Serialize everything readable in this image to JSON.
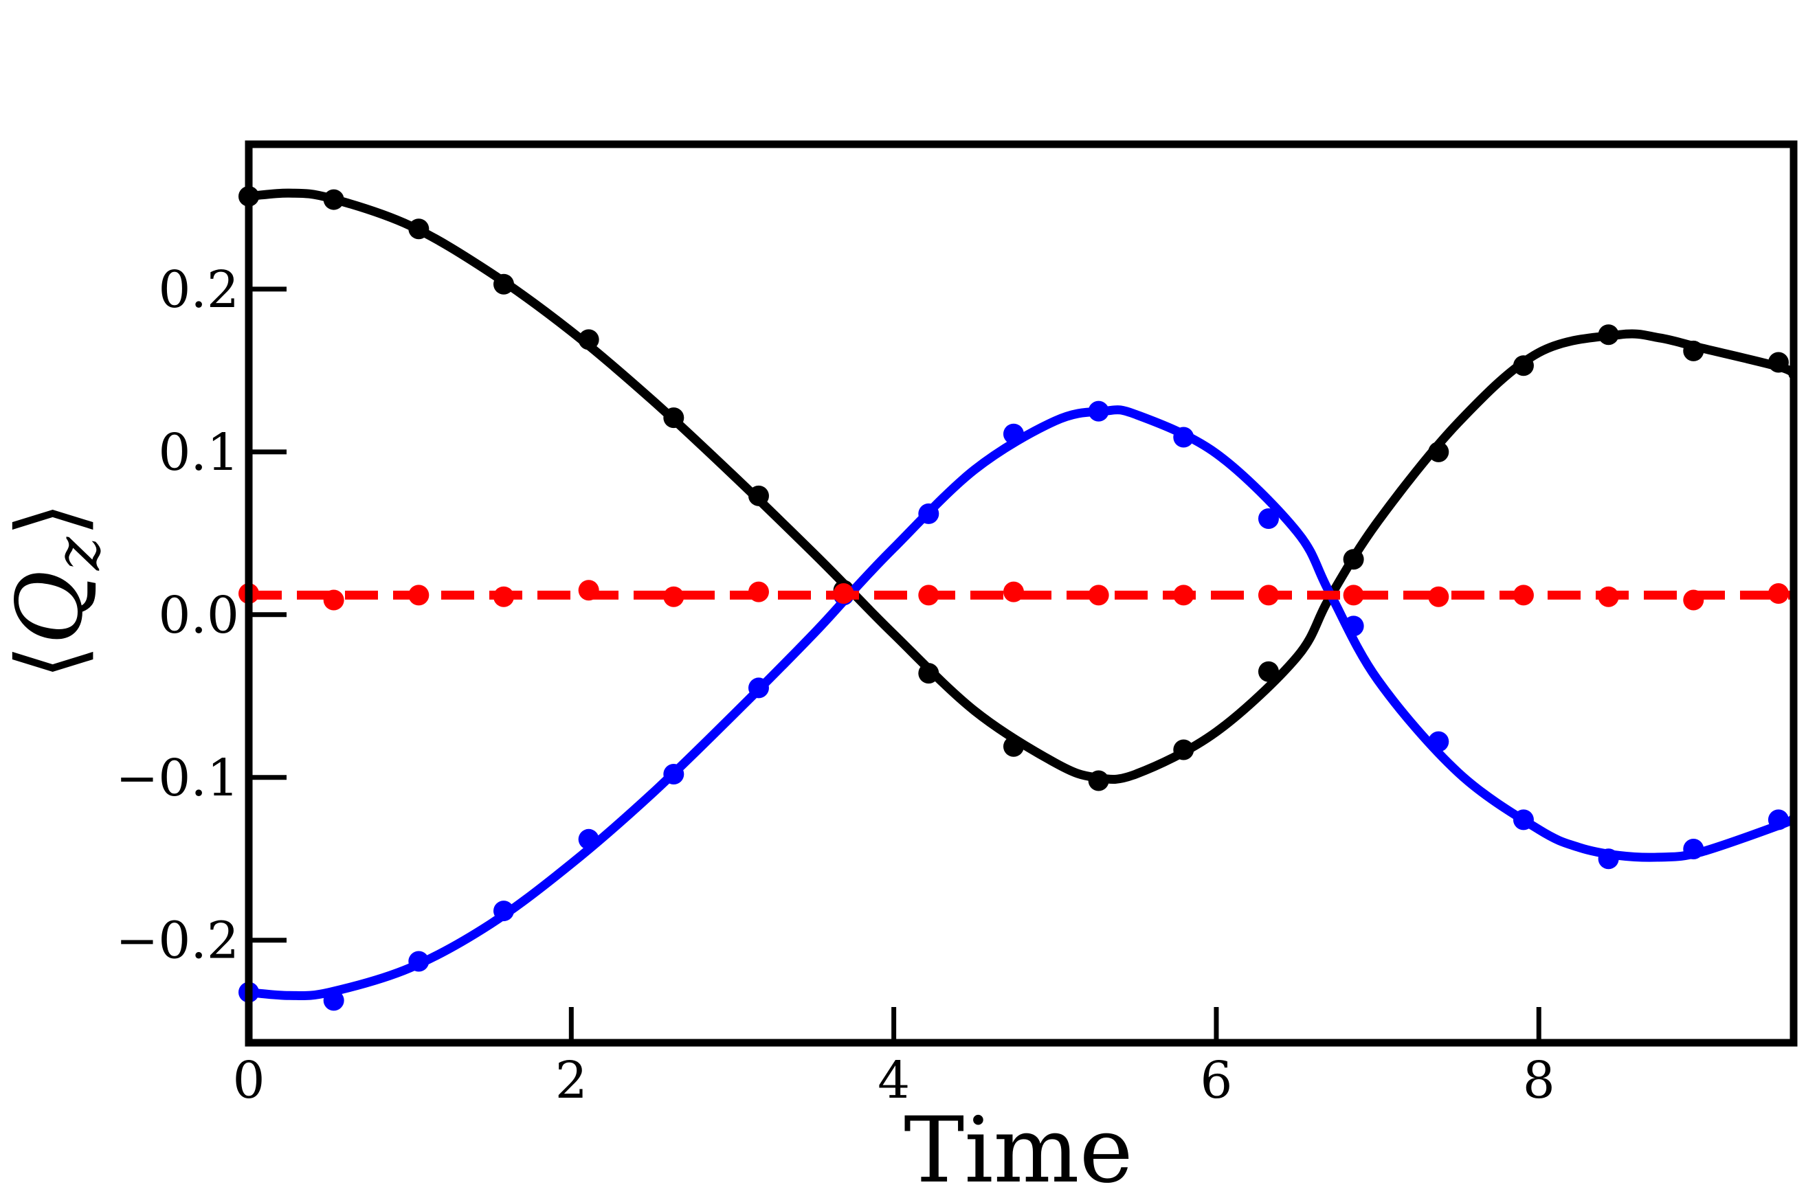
{
  "chart_data": {
    "type": "line",
    "title": "",
    "xlabel": "Time",
    "ylabel": "⟨Q_z⟩",
    "ylabel_parts": {
      "left": "⟨",
      "main": "Q",
      "sub": "z",
      "right": "⟩"
    },
    "xlim": [
      0,
      9.58
    ],
    "ylim": [
      -0.263,
      0.289
    ],
    "x_ticks": [
      0,
      2,
      4,
      6,
      8
    ],
    "x_tick_labels": [
      "0",
      "2",
      "4",
      "6",
      "8"
    ],
    "y_ticks": [
      -0.2,
      -0.1,
      0.0,
      0.1,
      0.2
    ],
    "y_tick_labels": [
      "−0.2",
      "−0.1",
      "0.0",
      "0.1",
      "0.2"
    ],
    "grid": false,
    "legend": "none",
    "series": [
      {
        "color": "#000000",
        "style": "solid",
        "line": {
          "x": [
            0,
            0.25,
            0.5,
            1.0,
            1.5,
            2.0,
            2.5,
            3.0,
            3.5,
            3.75,
            4.0,
            4.5,
            5.0,
            5.25,
            5.5,
            6.0,
            6.5,
            6.7,
            7.0,
            7.5,
            8.0,
            8.5,
            8.75,
            9.0,
            9.5,
            9.58
          ],
          "y": [
            0.257,
            0.259,
            0.256,
            0.239,
            0.21,
            0.174,
            0.132,
            0.086,
            0.038,
            0.013,
            -0.012,
            -0.059,
            -0.091,
            -0.1,
            -0.098,
            -0.072,
            -0.026,
            0.01,
            0.057,
            0.118,
            0.161,
            0.172,
            0.17,
            0.164,
            0.152,
            0.147
          ]
        },
        "points": {
          "x": [
            0,
            0.527,
            1.054,
            1.581,
            2.108,
            2.635,
            3.162,
            3.689,
            4.216,
            4.743,
            5.27,
            5.797,
            6.324,
            6.851,
            7.378,
            7.905,
            8.432,
            8.959,
            9.486
          ],
          "y": [
            0.257,
            0.255,
            0.237,
            0.203,
            0.169,
            0.121,
            0.073,
            0.015,
            -0.036,
            -0.081,
            -0.102,
            -0.083,
            -0.035,
            0.034,
            0.1,
            0.153,
            0.172,
            0.162,
            0.155
          ]
        }
      },
      {
        "color": "#0000ff",
        "style": "solid",
        "line": {
          "x": [
            0,
            0.25,
            0.5,
            1.0,
            1.5,
            2.0,
            2.5,
            3.0,
            3.5,
            3.75,
            4.0,
            4.5,
            5.0,
            5.3,
            5.5,
            6.0,
            6.5,
            6.7,
            7.0,
            7.5,
            8.0,
            8.25,
            8.5,
            8.75,
            9.0,
            9.5,
            9.58
          ],
          "y": [
            -0.232,
            -0.234,
            -0.232,
            -0.217,
            -0.19,
            -0.153,
            -0.11,
            -0.062,
            -0.012,
            0.015,
            0.041,
            0.089,
            0.119,
            0.125,
            0.123,
            0.099,
            0.051,
            0.014,
            -0.04,
            -0.097,
            -0.132,
            -0.143,
            -0.148,
            -0.149,
            -0.146,
            -0.129,
            -0.125
          ]
        },
        "points": {
          "x": [
            0,
            0.527,
            1.054,
            1.581,
            2.108,
            2.635,
            3.162,
            3.689,
            4.216,
            4.743,
            5.27,
            5.797,
            6.324,
            6.851,
            7.378,
            7.905,
            8.432,
            8.959,
            9.486
          ],
          "y": [
            -0.232,
            -0.237,
            -0.213,
            -0.182,
            -0.138,
            -0.098,
            -0.045,
            0.012,
            0.062,
            0.111,
            0.125,
            0.109,
            0.059,
            -0.007,
            -0.078,
            -0.126,
            -0.15,
            -0.144,
            -0.126
          ]
        }
      },
      {
        "color": "#ff0000",
        "style": "dashed",
        "line": {
          "x": [
            0,
            9.58
          ],
          "y": [
            0.012,
            0.012
          ]
        },
        "points": {
          "x": [
            0,
            0.527,
            1.054,
            1.581,
            2.108,
            2.635,
            3.162,
            3.689,
            4.216,
            4.743,
            5.27,
            5.797,
            6.324,
            6.851,
            7.378,
            7.905,
            8.432,
            8.959,
            9.486
          ],
          "y": [
            0.013,
            0.009,
            0.012,
            0.011,
            0.015,
            0.011,
            0.014,
            0.013,
            0.012,
            0.014,
            0.012,
            0.012,
            0.012,
            0.012,
            0.011,
            0.012,
            0.011,
            0.009,
            0.013
          ]
        }
      }
    ]
  }
}
